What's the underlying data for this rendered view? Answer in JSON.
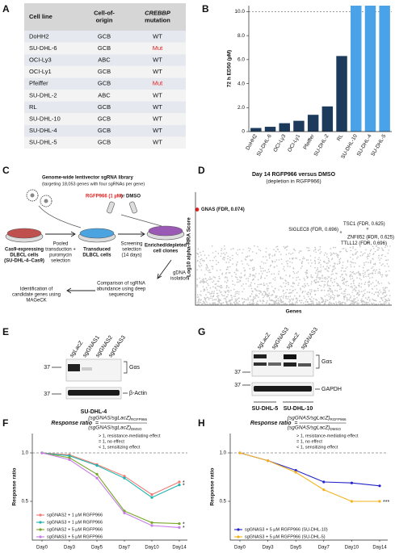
{
  "panel_labels": [
    "A",
    "B",
    "C",
    "D",
    "E",
    "F",
    "G",
    "H"
  ],
  "table": {
    "header": [
      [
        "Cell line"
      ],
      [
        "Cell-of-",
        "origin"
      ],
      [
        "CREBBP",
        "mutation"
      ]
    ],
    "rows": [
      [
        "DoHH2",
        "GCB",
        "WT"
      ],
      [
        "SU-DHL-6",
        "GCB",
        "Mut"
      ],
      [
        "OCI-Ly3",
        "ABC",
        "WT"
      ],
      [
        "OCI-Ly1",
        "GCB",
        "WT"
      ],
      [
        "Pfeiffer",
        "GCB",
        "Mut"
      ],
      [
        "SU-DHL-2",
        "ABC",
        "WT"
      ],
      [
        "RL",
        "GCB",
        "WT"
      ],
      [
        "SU-DHL-10",
        "GCB",
        "WT"
      ],
      [
        "SU-DHL-4",
        "GCB",
        "WT"
      ],
      [
        "SU-DHL-5",
        "GCB",
        "WT"
      ]
    ],
    "highlight_rows": [
      1,
      4
    ],
    "highlight_color": "#e02020"
  },
  "chart_data": [
    {
      "type": "bar",
      "ylabel": "72 h ED50 (µM)",
      "categories": [
        "DoHH2",
        "SU-DHL-6",
        "OCI-Ly3",
        "OCI-Ly1",
        "Pfeiffer",
        "SU-DHL-2",
        "RL",
        "SU-DHL-10",
        "SU-DHL-4",
        "SU-DHL-5"
      ],
      "values": [
        0.3,
        0.4,
        0.7,
        0.9,
        1.4,
        2.1,
        6.3,
        10.5,
        10.5,
        10.5
      ],
      "colors": [
        "#1b3a5c",
        "#1b3a5c",
        "#1b3a5c",
        "#1b3a5c",
        "#1b3a5c",
        "#1b3a5c",
        "#1b3a5c",
        "#4aa3e8",
        "#4aa3e8",
        "#4aa3e8"
      ],
      "ylim": [
        0,
        10.5
      ],
      "yticks": [
        0,
        {
          "value": 2,
          "label": "2.0"
        },
        {
          "value": 4,
          "label": "4.0"
        },
        {
          "value": 6,
          "label": "6.0"
        },
        {
          "value": 8,
          "label": "8.0"
        },
        {
          "value": 10,
          "label": "10.0"
        }
      ],
      "ref_line": 10
    },
    {
      "type": "scatter",
      "title": "Day 14 RGFP966 versus DMSO",
      "subtitle": "(depletion in RGFP966)",
      "xlabel": "Genes",
      "ylabel": "−Log10 alpha-RRA Score",
      "x": [
        150,
        15820,
        13370,
        15970,
        15820
      ],
      "values": [
        5.5,
        4.4,
        4.2,
        3.9,
        3.6
      ],
      "point_labels": [
        "GNAS (FDR, 0.074)",
        "TSC1 (FDR, 0.625)",
        "SIGLEC8 (FDR, 0.696)",
        "ZNF852 (FDR, 0.625)",
        "TTLL12 (FDR, 0.696)"
      ],
      "colors": [
        "#e02020",
        "#9a9a9a",
        "#9a9a9a",
        "#9a9a9a",
        "#9a9a9a"
      ],
      "xlim": [
        0,
        18053
      ],
      "ylim": [
        0,
        6.5
      ]
    },
    {
      "type": "line",
      "formula": {
        "lhs": "Response ratio",
        "eq": "=",
        "num": "(sgGNAS/sgLacZ)",
        "num_sub": "RGFP966",
        "den": "(sgGNAS/sgLacZ)",
        "den_sub": "DMSO"
      },
      "notes": [
        "> 1, resistance-mediating effect",
        "= 1, no effect",
        "< 1, sensitizing effect"
      ],
      "ylabel": "Response ratio",
      "categories": [
        "Day0",
        "Day3",
        "Day5",
        "Day7",
        "Day10",
        "Day14"
      ],
      "series": [
        {
          "name": "sgGNAS2 + 1 µM RGFP966",
          "color": "#f07a72",
          "values": [
            1.0,
            0.98,
            0.88,
            0.76,
            0.57,
            0.7
          ],
          "sig": "*"
        },
        {
          "name": "sgGNAS3 + 1 µM RGFP966",
          "color": "#1fb5b0",
          "values": [
            1.0,
            0.97,
            0.87,
            0.74,
            0.54,
            0.67
          ],
          "sig": "*"
        },
        {
          "name": "sgGNAS2 + 5 µM RGFP966",
          "color": "#7aa82a",
          "values": [
            1.0,
            0.95,
            0.78,
            0.4,
            0.28,
            0.27
          ],
          "sig": "*"
        },
        {
          "name": "sgGNAS3 + 5 µM RGFP966",
          "color": "#c77ce8",
          "values": [
            1.0,
            0.93,
            0.74,
            0.38,
            0.25,
            0.23
          ],
          "sig": "*"
        }
      ],
      "ylim": [
        0.1,
        1.2
      ],
      "yticks": [
        {
          "value": 0.5,
          "label": "0.5"
        },
        {
          "value": 1,
          "label": "1.0"
        }
      ],
      "ref_line": 1
    },
    {
      "type": "line",
      "formula": {
        "lhs": "Response ratio",
        "eq": "=",
        "num": "(sgGNAS/sgLacZ)",
        "num_sub": "RGFP966",
        "den": "(sgGNAS/sgLacZ)",
        "den_sub": "DMSO"
      },
      "notes": [
        "> 1, resistance-mediating effect",
        "= 1, no effect",
        "< 1, sensitizing effect"
      ],
      "ylabel": "Response ratio",
      "categories": [
        "Day0",
        "Day3",
        "Day5",
        "Day7",
        "Day10",
        "Day14"
      ],
      "series": [
        {
          "name": "sgGNAS3 + 5 µM RGFP966 (SU-DHL-10)",
          "color": "#2424c8",
          "values": [
            1.0,
            0.92,
            0.82,
            0.7,
            0.69,
            0.66
          ]
        },
        {
          "name": "sgGNAS3 + 5 µM RGFP966 (SU-DHL-5)",
          "color": "#f5b21d",
          "values": [
            1.0,
            0.92,
            0.8,
            0.62,
            0.5,
            0.5
          ],
          "sig": "***"
        }
      ],
      "ylim": [
        0.1,
        1.2
      ],
      "yticks": [
        {
          "value": 0.5,
          "label": "0.5"
        },
        {
          "value": 1,
          "label": "1.0"
        }
      ],
      "ref_line": 1
    }
  ],
  "workflow": {
    "library": "Genome-wide lentivector sgRNA library",
    "library_note": "(targeting 18,053 genes with four sgRNAs per gene)",
    "drug": "RGFP966 (1 µM)",
    "or": "or",
    "control": "DMSO",
    "step1": [
      "Pooled",
      "transduction +",
      "puromycin",
      "selection"
    ],
    "step2": [
      "Screening",
      "selection",
      "(14 days)"
    ],
    "cells1": [
      "Cas9-expressing",
      "DLBCL cells",
      "(SU-DHL-4–Cas9)"
    ],
    "cells2": [
      "Transduced",
      "DLBCL cells"
    ],
    "cells3": [
      "Enriched/depleted",
      "cell clones"
    ],
    "step3": [
      "gDNA",
      "isolation"
    ],
    "step4": [
      "Comparison of sgRNA",
      "abundance using deep",
      "sequencing"
    ],
    "step5": [
      "Identification of",
      "candidate genes using",
      "MAGeCK"
    ]
  },
  "blot_e": {
    "lanes": [
      "sgLacZ",
      "sgGNAS1",
      "sgGNAS2",
      "sgGNAS3"
    ],
    "markers": [
      "37",
      "37"
    ],
    "bands": [
      "Gαs",
      "β-Actin"
    ],
    "cell_line": "SU-DHL-4"
  },
  "blot_g": {
    "lanes": [
      "sgLacZ",
      "sgGNAS3",
      "sgLacZ",
      "sgGNAS3"
    ],
    "markers": [
      "37",
      "37"
    ],
    "bands": [
      "Gαs",
      "GAPDH"
    ],
    "cell_lines": [
      "SU-DHL-5",
      "SU-DHL-10"
    ]
  }
}
